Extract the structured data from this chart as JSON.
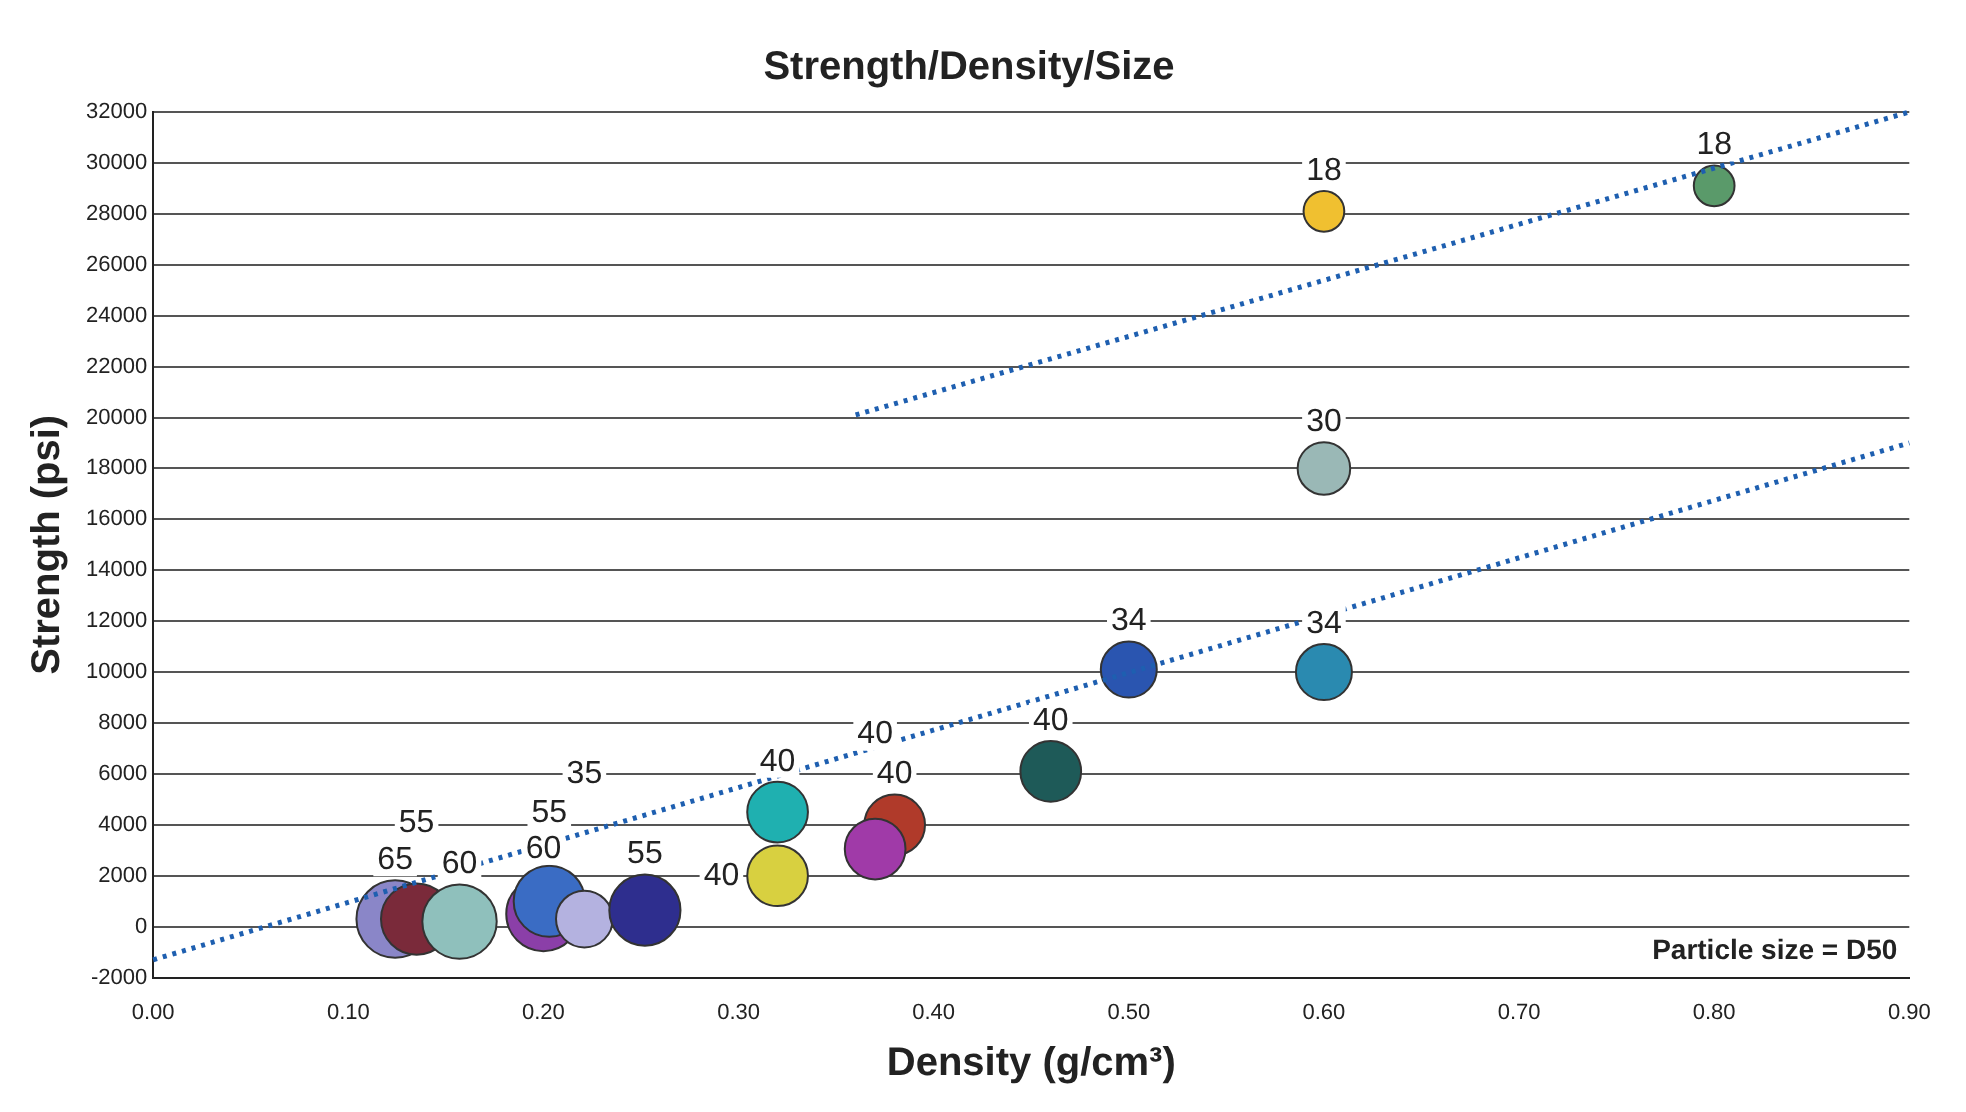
{
  "chart_data": {
    "type": "bubble",
    "title": "Strength/Density/Size",
    "xlabel": "Density (g/cm³)",
    "ylabel": "Strength (psi)",
    "xlim": [
      0,
      0.9
    ],
    "xticks": [
      {
        "value": 0,
        "label": "0.00"
      },
      {
        "value": 0.1,
        "label": "0.10"
      },
      {
        "value": 0.2,
        "label": "0.20"
      },
      {
        "value": 0.3,
        "label": "0.30"
      },
      {
        "value": 0.4,
        "label": "0.40"
      },
      {
        "value": 0.5,
        "label": "0.50"
      },
      {
        "value": 0.6,
        "label": "0.60"
      },
      {
        "value": 0.7,
        "label": "0.70"
      },
      {
        "value": 0.8,
        "label": "0.80"
      },
      {
        "value": 0.9,
        "label": "0.90"
      }
    ],
    "ylim": [
      -2000,
      32000
    ],
    "yticks": [
      -2000,
      0,
      2000,
      4000,
      6000,
      8000,
      10000,
      12000,
      14000,
      16000,
      18000,
      20000,
      22000,
      24000,
      26000,
      28000,
      30000,
      32000
    ],
    "grid": "y",
    "legend": false,
    "annotations": [
      "Particle size = D50"
    ],
    "series": [
      {
        "type": "bubble",
        "x": [
          0.124,
          0.135,
          0.2,
          0.157,
          0.203,
          0.221,
          0.252,
          0.32,
          0.32,
          0.38,
          0.37,
          0.46,
          0.5,
          0.6,
          0.6,
          0.6,
          0.8
        ],
        "values": [
          300,
          300,
          500,
          200,
          1000,
          300,
          650,
          4500,
          2000,
          4000,
          3050,
          6100,
          10100,
          10000,
          18000,
          28100,
          29100
        ],
        "sizes": [
          65,
          55,
          60,
          60,
          55,
          35,
          55,
          40,
          40,
          40,
          40,
          40,
          34,
          34,
          30,
          18,
          18
        ],
        "value_labels": [
          "65",
          "55",
          "60",
          "60",
          "55",
          "35",
          "55",
          "40",
          "40",
          "40",
          "40",
          "40",
          "34",
          "34",
          "30",
          "18",
          "18"
        ],
        "colors": [
          "#8a86c8",
          "#7a2a3a",
          "#8b3fa8",
          "#8fc0bc",
          "#3a6cc4",
          "#b4b2e0",
          "#2e2e8e",
          "#1fb0b0",
          "#d8d040",
          "#b03a2a",
          "#a03aa8",
          "#1e5a58",
          "#2a55b0",
          "#2a8ab0",
          "#9ab8b6",
          "#f0c030",
          "#5a9a6a"
        ]
      },
      {
        "type": "line",
        "x": [
          0.36,
          0.9
        ],
        "values": [
          20100,
          32000
        ],
        "color": "#1e5fb0",
        "line_style": "dotted"
      },
      {
        "type": "line",
        "x": [
          0.0,
          0.9
        ],
        "values": [
          -1300,
          19000
        ],
        "color": "#1e5fb0",
        "line_style": "dotted"
      }
    ]
  }
}
